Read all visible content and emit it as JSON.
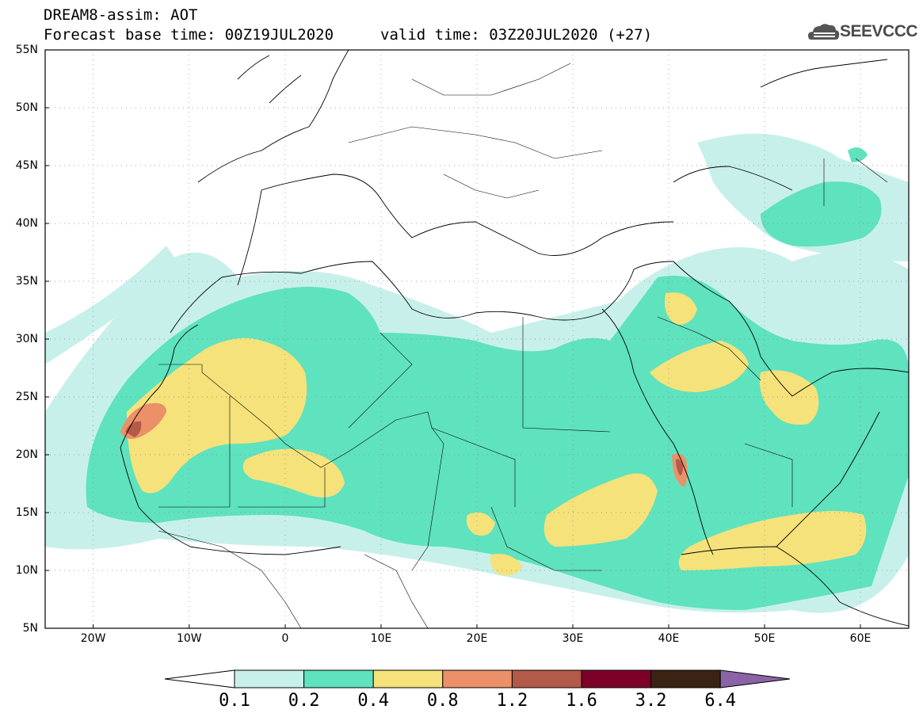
{
  "header": {
    "title": "DREAM8-assim: AOT",
    "base_time": "Forecast base time: 00Z19JUL2020",
    "valid_time": "valid time: 03Z20JUL2020 (+27)"
  },
  "logo": {
    "text": "SEEVCCC",
    "icon": "cloud-logo-icon"
  },
  "map": {
    "lat_labels": [
      "55N",
      "50N",
      "45N",
      "40N",
      "35N",
      "30N",
      "25N",
      "20N",
      "15N",
      "10N",
      "5N"
    ],
    "lon_labels": [
      "20W",
      "10W",
      "0",
      "10E",
      "20E",
      "30E",
      "40E",
      "50E",
      "60E"
    ],
    "lon_range": [
      -25,
      65
    ],
    "lat_range": [
      5,
      55
    ],
    "gridlines": "dotted"
  },
  "colorbar": {
    "labels": [
      "0.1",
      "0.2",
      "0.4",
      "0.8",
      "1.2",
      "1.6",
      "3.2",
      "6.4"
    ],
    "colors": [
      "#c8f0eb",
      "#5fe2be",
      "#f5e27a",
      "#eb9068",
      "#b35a48",
      "#7d0029",
      "#3b2313",
      "#8a64a6"
    ]
  }
}
